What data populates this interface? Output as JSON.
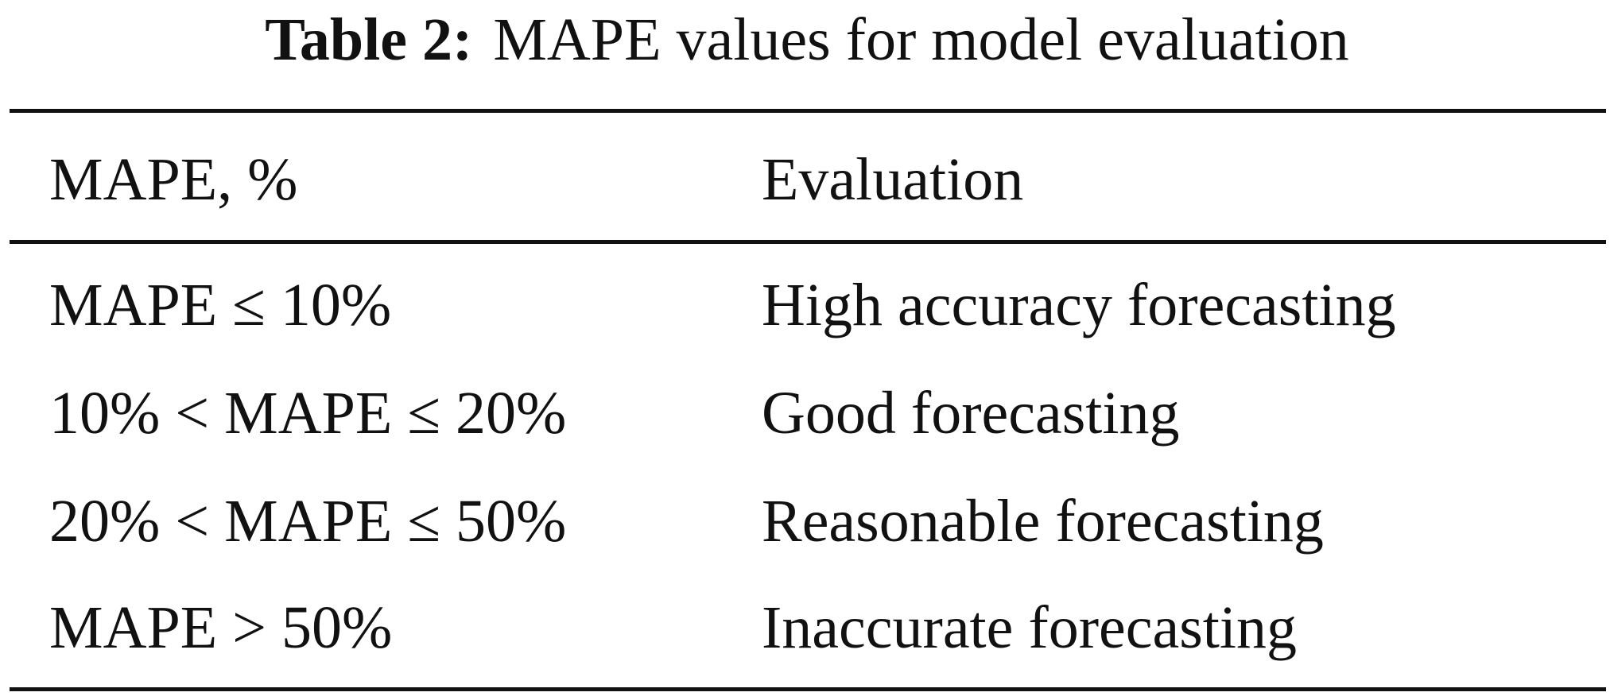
{
  "caption": {
    "label": "Table 2:",
    "text": "MAPE values for model evaluation"
  },
  "table": {
    "headers": [
      "MAPE, %",
      "Evaluation"
    ],
    "rows": [
      [
        "MAPE ≤ 10%",
        "High accuracy forecasting"
      ],
      [
        "10% < MAPE ≤ 20%",
        "Good forecasting"
      ],
      [
        "20% < MAPE ≤ 50%",
        "Reasonable forecasting"
      ],
      [
        "MAPE > 50%",
        "Inaccurate forecasting"
      ]
    ]
  }
}
